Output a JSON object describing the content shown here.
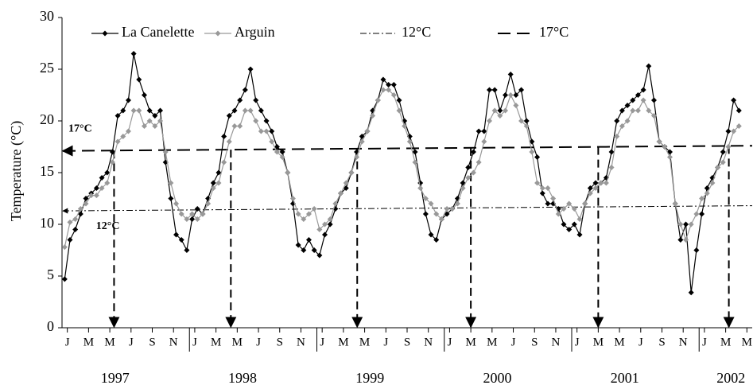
{
  "chart_data": {
    "type": "line",
    "y_label": "Temperature (°C)",
    "xlim": [
      0,
      65
    ],
    "ylim": [
      0,
      30
    ],
    "yticks": [
      0,
      5,
      10,
      15,
      20,
      25,
      30
    ],
    "xticks": [
      {
        "value": 0.5,
        "label": "J"
      },
      {
        "value": 2.5,
        "label": "M"
      },
      {
        "value": 4.5,
        "label": "M"
      },
      {
        "value": 6.5,
        "label": "J"
      },
      {
        "value": 8.5,
        "label": "S"
      },
      {
        "value": 10.5,
        "label": "N"
      },
      {
        "value": 12.5,
        "label": "J"
      },
      {
        "value": 14.5,
        "label": "M"
      },
      {
        "value": 16.5,
        "label": "M"
      },
      {
        "value": 18.5,
        "label": "J"
      },
      {
        "value": 20.5,
        "label": "S"
      },
      {
        "value": 22.5,
        "label": "N"
      },
      {
        "value": 24.5,
        "label": "J"
      },
      {
        "value": 26.5,
        "label": "M"
      },
      {
        "value": 28.5,
        "label": "M"
      },
      {
        "value": 30.5,
        "label": "J"
      },
      {
        "value": 32.5,
        "label": "S"
      },
      {
        "value": 34.5,
        "label": "N"
      },
      {
        "value": 36.5,
        "label": "J"
      },
      {
        "value": 38.5,
        "label": "M"
      },
      {
        "value": 40.5,
        "label": "M"
      },
      {
        "value": 42.5,
        "label": "J"
      },
      {
        "value": 44.5,
        "label": "S"
      },
      {
        "value": 46.5,
        "label": "N"
      },
      {
        "value": 48.5,
        "label": "J"
      },
      {
        "value": 50.5,
        "label": "M"
      },
      {
        "value": 52.5,
        "label": "M"
      },
      {
        "value": 54.5,
        "label": "J"
      },
      {
        "value": 56.5,
        "label": "S"
      },
      {
        "value": 58.5,
        "label": "N"
      },
      {
        "value": 60.5,
        "label": "J"
      },
      {
        "value": 62.5,
        "label": "M"
      },
      {
        "value": 64.5,
        "label": "M"
      }
    ],
    "year_ticks": [
      12,
      24,
      36,
      48,
      60
    ],
    "x_groups": [
      {
        "value": 5,
        "label": "1997"
      },
      {
        "value": 17,
        "label": "1998"
      },
      {
        "value": 29,
        "label": "1999"
      },
      {
        "value": 41,
        "label": "2000"
      },
      {
        "value": 53,
        "label": "2001"
      },
      {
        "value": 63,
        "label": "2002"
      }
    ],
    "legend": "top-left",
    "x": [
      0.25,
      0.75,
      1.25,
      1.75,
      2.25,
      2.75,
      3.25,
      3.75,
      4.25,
      4.75,
      5.25,
      5.75,
      6.25,
      6.75,
      7.25,
      7.75,
      8.25,
      8.75,
      9.25,
      9.75,
      10.25,
      10.75,
      11.25,
      11.75,
      12.25,
      12.75,
      13.25,
      13.75,
      14.25,
      14.75,
      15.25,
      15.75,
      16.25,
      16.75,
      17.25,
      17.75,
      18.25,
      18.75,
      19.25,
      19.75,
      20.25,
      20.75,
      21.25,
      21.75,
      22.25,
      22.75,
      23.25,
      23.75,
      24.25,
      24.75,
      25.25,
      25.75,
      26.25,
      26.75,
      27.25,
      27.75,
      28.25,
      28.75,
      29.25,
      29.75,
      30.25,
      30.75,
      31.25,
      31.75,
      32.25,
      32.75,
      33.25,
      33.75,
      34.25,
      34.75,
      35.25,
      35.75,
      36.25,
      36.75,
      37.25,
      37.75,
      38.25,
      38.75,
      39.25,
      39.75,
      40.25,
      40.75,
      41.25,
      41.75,
      42.25,
      42.75,
      43.25,
      43.75,
      44.25,
      44.75,
      45.25,
      45.75,
      46.25,
      46.75,
      47.25,
      47.75,
      48.25,
      48.75,
      49.25,
      49.75,
      50.25,
      50.75,
      51.25,
      51.75,
      52.25,
      52.75,
      53.25,
      53.75,
      54.25,
      54.75,
      55.25,
      55.75,
      56.25,
      56.75,
      57.25,
      57.75,
      58.25,
      58.75,
      59.25,
      59.75,
      60.25,
      60.75,
      61.25,
      61.75,
      62.25,
      62.75,
      63.25,
      63.75
    ],
    "series": [
      {
        "name": "La Canelette",
        "color": "#000000",
        "marker": "diamond",
        "values": [
          4.7,
          8.5,
          9.5,
          11,
          12.5,
          13,
          13.5,
          14.5,
          15,
          17,
          20.5,
          21,
          22,
          26.5,
          24,
          22.5,
          21,
          20.5,
          21,
          16,
          12.5,
          9,
          8.5,
          7.5,
          10.5,
          11.5,
          11,
          12.5,
          14,
          15,
          18.5,
          20.5,
          21,
          22,
          23,
          25,
          22,
          21,
          20,
          19,
          17.5,
          17,
          15,
          12,
          8,
          7.5,
          8.5,
          7.5,
          7,
          9,
          10,
          11.5,
          13,
          13.5,
          15,
          17,
          18.5,
          19,
          21,
          22,
          24,
          23.5,
          23.5,
          22,
          20,
          18.5,
          17,
          14,
          11,
          9,
          8.5,
          10.5,
          11,
          11.5,
          12.5,
          14,
          15.5,
          17,
          19,
          19,
          23,
          23,
          21,
          22.5,
          24.5,
          22.5,
          23,
          20,
          18,
          16.5,
          13,
          12,
          12,
          11.5,
          10,
          9.5,
          10,
          9,
          12,
          13.5,
          14,
          14,
          14.5,
          17,
          20,
          21,
          21.5,
          22,
          22.5,
          23,
          25.3,
          22,
          18,
          17.5,
          17,
          12,
          8.5,
          10,
          3.4,
          7.5,
          11,
          13.5,
          14.5,
          15.5,
          17,
          19,
          22,
          21
        ]
      },
      {
        "name": "Arguin",
        "color": "#999999",
        "marker": "diamond",
        "values": [
          7.8,
          10.2,
          10.5,
          11.5,
          12,
          12.8,
          12.8,
          13.5,
          14,
          16,
          18,
          18.5,
          19,
          21,
          21,
          19.5,
          20,
          19.5,
          20,
          17,
          14,
          12,
          11,
          10.5,
          11,
          10.5,
          11,
          12,
          13.5,
          14,
          16,
          18,
          19.5,
          19.5,
          21,
          21,
          20,
          19,
          19,
          18,
          17,
          16.5,
          15,
          12.5,
          11,
          10.5,
          11,
          11.5,
          9.5,
          10,
          10.5,
          12,
          13,
          14,
          15,
          16.5,
          18,
          19,
          20.5,
          22,
          23,
          23,
          22.5,
          21,
          19.5,
          18,
          16,
          13.5,
          12.5,
          12,
          11,
          10.5,
          11.5,
          11.5,
          12,
          13.5,
          14.5,
          15,
          16,
          18,
          20,
          21,
          20.5,
          21,
          22.5,
          21.5,
          20,
          19.5,
          17,
          14,
          13.5,
          13.5,
          12.5,
          11,
          11.5,
          12,
          11.5,
          10.5,
          12,
          13,
          13.5,
          14,
          14,
          15.5,
          18.5,
          19.5,
          20,
          21,
          21,
          22,
          21,
          20.5,
          18,
          17.5,
          16.5,
          12,
          10,
          8.5,
          10,
          11,
          12.5,
          13,
          14,
          15.5,
          16,
          17.5,
          19,
          19.5
        ]
      }
    ],
    "ref_lines": [
      {
        "name": "12°C",
        "color": "#000000",
        "style": "dash-dot",
        "values": [
          11.3,
          11.8
        ]
      },
      {
        "name": "17°C",
        "color": "#000000",
        "style": "dashed",
        "values": [
          17.1,
          17.6
        ]
      }
    ],
    "annotations": [
      {
        "text": "17°C",
        "x": 0.6,
        "y": 19.2
      },
      {
        "text": "12°C",
        "x": 3.2,
        "y": 9.8
      }
    ],
    "arrows_x": [
      4.9,
      15.9,
      27.8,
      38.5,
      50.5,
      62.8
    ]
  }
}
